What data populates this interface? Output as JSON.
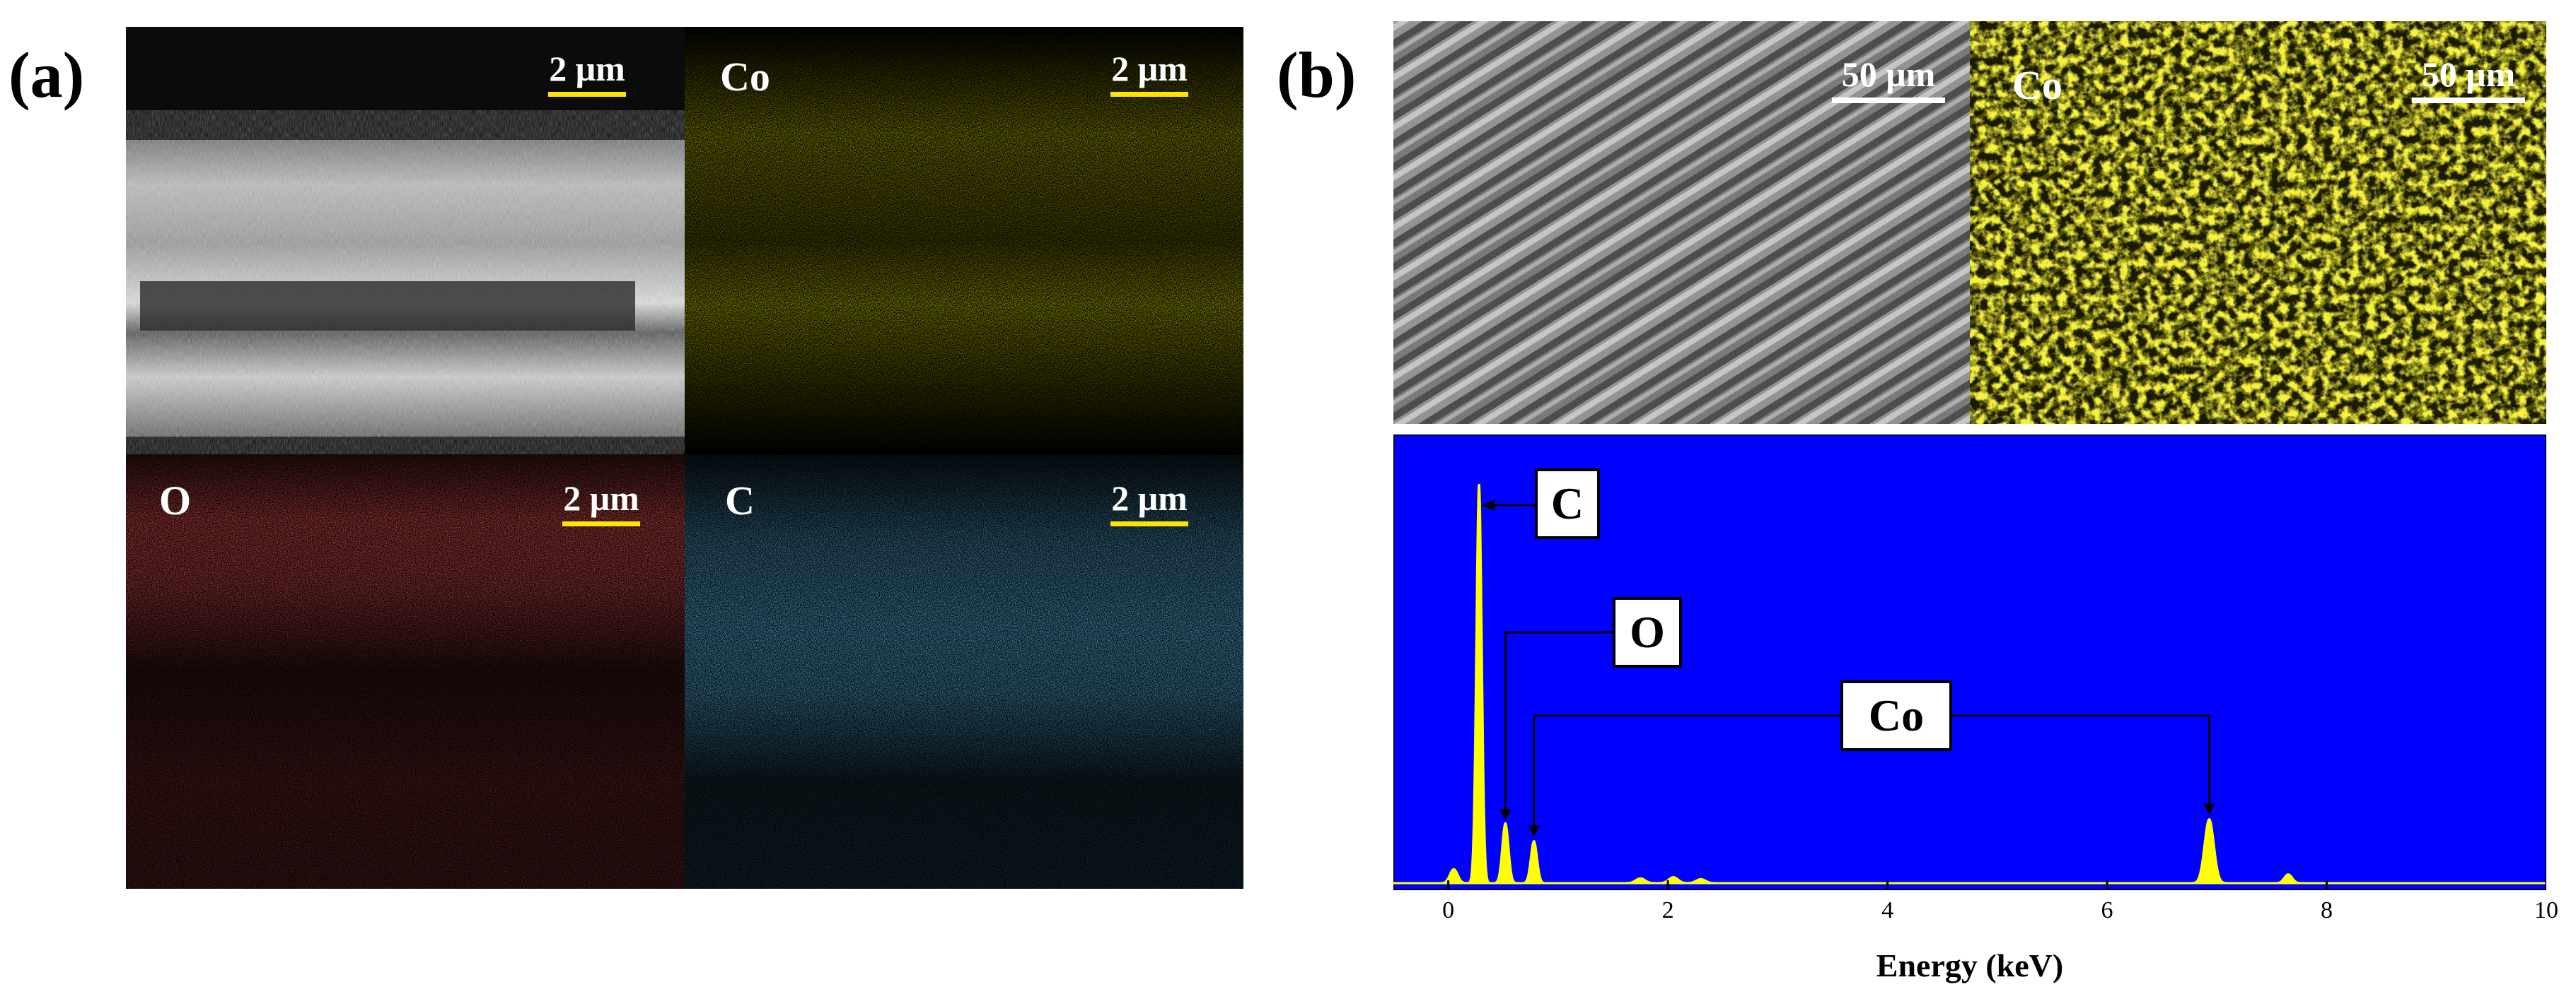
{
  "panels": {
    "a": {
      "label": "(a)",
      "tiles": [
        {
          "element": "",
          "scale": "2 μm",
          "style": "sem"
        },
        {
          "element": "Co",
          "scale": "2 μm",
          "style": "map",
          "color": "#e8e000"
        },
        {
          "element": "O",
          "scale": "2 μm",
          "style": "map",
          "color": "#ff1a1a"
        },
        {
          "element": "C",
          "scale": "2 μm",
          "style": "map",
          "color": "#1e9bff"
        }
      ]
    },
    "b": {
      "label": "(b)",
      "tiles": [
        {
          "element": "",
          "scale": "50 μm",
          "style": "sem"
        },
        {
          "element": "Co",
          "scale": "50 μm",
          "style": "map",
          "color": "#e8e000"
        }
      ]
    }
  },
  "chart_data": {
    "type": "line",
    "title": "",
    "xlabel": "Energy (keV)",
    "ylabel": "",
    "xlim": [
      -0.5,
      10
    ],
    "ylim": [
      0,
      1
    ],
    "x_ticks": [
      0,
      2,
      4,
      6,
      8,
      10
    ],
    "background": "#0000ff",
    "line_color": "#ffff00",
    "peaks": [
      {
        "x": 0.05,
        "height": 0.035,
        "width": 0.05
      },
      {
        "x": 0.28,
        "height": 1.0,
        "width": 0.035
      },
      {
        "x": 0.52,
        "height": 0.15,
        "width": 0.04
      },
      {
        "x": 0.78,
        "height": 0.105,
        "width": 0.04
      },
      {
        "x": 1.75,
        "height": 0.012,
        "width": 0.06
      },
      {
        "x": 2.05,
        "height": 0.015,
        "width": 0.06
      },
      {
        "x": 2.3,
        "height": 0.01,
        "width": 0.06
      },
      {
        "x": 6.93,
        "height": 0.16,
        "width": 0.06
      },
      {
        "x": 7.65,
        "height": 0.022,
        "width": 0.05
      }
    ],
    "annotations": [
      {
        "label": "C",
        "x": 0.28
      },
      {
        "label": "O",
        "x": 0.52
      },
      {
        "label": "Co",
        "x": [
          0.78,
          6.93
        ]
      }
    ]
  }
}
